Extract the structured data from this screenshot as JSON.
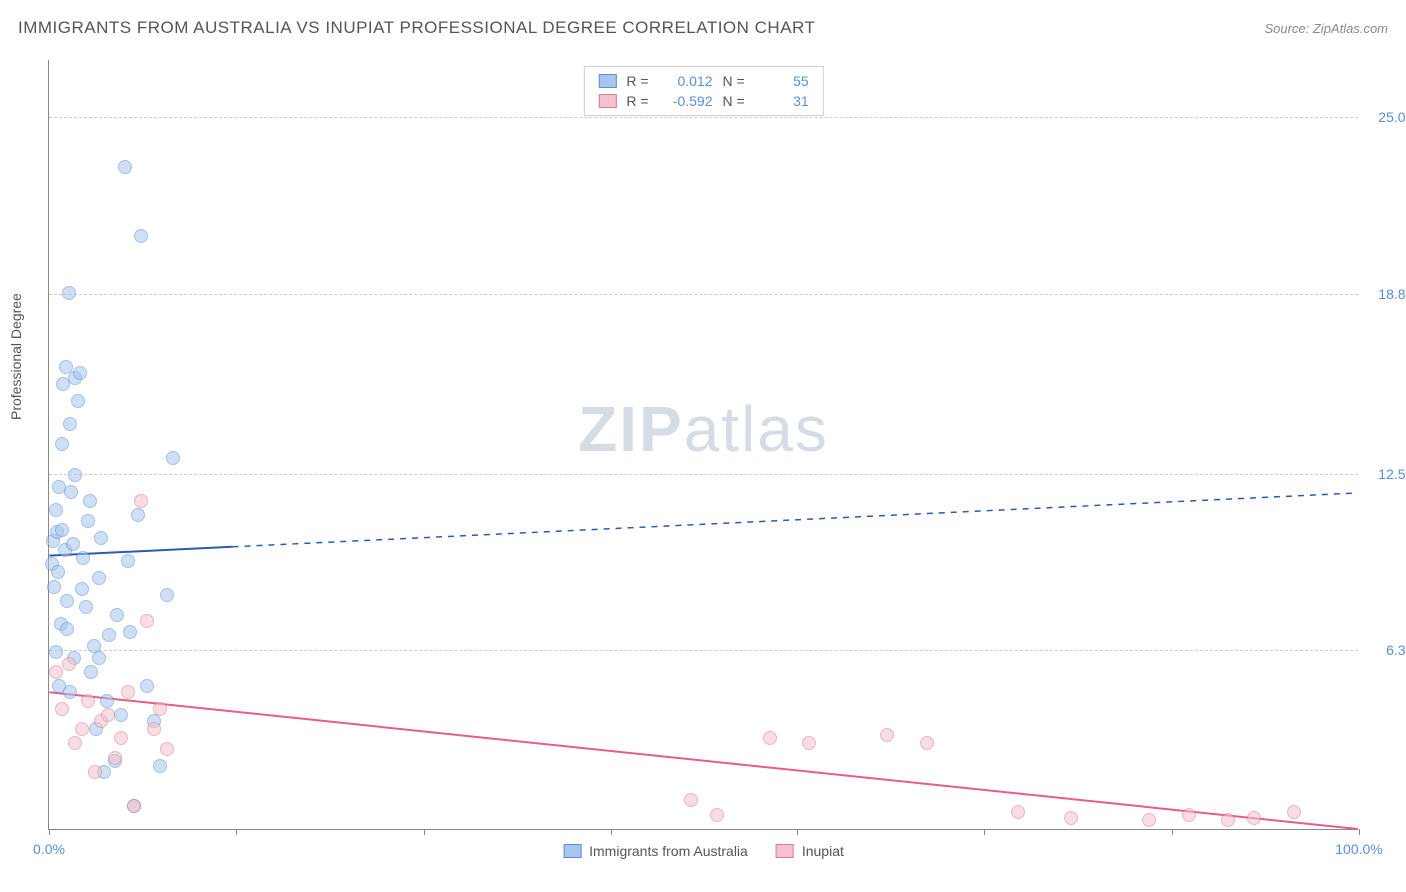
{
  "header": {
    "title": "IMMIGRANTS FROM AUSTRALIA VS INUPIAT PROFESSIONAL DEGREE CORRELATION CHART",
    "source": "Source: ZipAtlas.com"
  },
  "ylabel": "Professional Degree",
  "watermark": {
    "zip": "ZIP",
    "atlas": "atlas"
  },
  "chart": {
    "type": "scatter",
    "background_color": "#ffffff",
    "grid_color": "#cccccc",
    "axis_color": "#888888",
    "xlim": [
      0,
      100
    ],
    "ylim": [
      0,
      27
    ],
    "yticks": [
      {
        "v": 6.3,
        "label": "6.3%"
      },
      {
        "v": 12.5,
        "label": "12.5%"
      },
      {
        "v": 18.8,
        "label": "18.8%"
      },
      {
        "v": 25.0,
        "label": "25.0%"
      }
    ],
    "xticks_minor": [
      0,
      14.3,
      28.6,
      42.9,
      57.1,
      71.4,
      85.7,
      100
    ],
    "xticks_label": [
      {
        "v": 0,
        "label": "0.0%"
      },
      {
        "v": 100,
        "label": "100.0%"
      }
    ],
    "point_radius": 7,
    "point_opacity": 0.55,
    "point_border_width": 1.2,
    "series": [
      {
        "name": "Immigrants from Australia",
        "color_fill": "#a8c6ec",
        "color_stroke": "#5b8fd6",
        "R": "0.012",
        "N": "55",
        "trend": {
          "color": "#2a5bb0",
          "width": 2,
          "solid_to_x": 14,
          "y_at_0": 9.6,
          "y_at_100": 11.8
        },
        "points": [
          [
            0.2,
            9.3
          ],
          [
            0.3,
            10.1
          ],
          [
            0.4,
            8.5
          ],
          [
            0.5,
            11.2
          ],
          [
            0.6,
            10.4
          ],
          [
            0.7,
            9.0
          ],
          [
            0.8,
            12.0
          ],
          [
            0.9,
            7.2
          ],
          [
            1.0,
            10.5
          ],
          [
            1.1,
            15.6
          ],
          [
            1.2,
            9.8
          ],
          [
            1.3,
            16.2
          ],
          [
            1.4,
            8.0
          ],
          [
            1.5,
            18.8
          ],
          [
            1.6,
            14.2
          ],
          [
            1.7,
            11.8
          ],
          [
            1.8,
            10.0
          ],
          [
            1.9,
            6.0
          ],
          [
            2.0,
            15.8
          ],
          [
            2.2,
            15.0
          ],
          [
            2.4,
            16.0
          ],
          [
            2.6,
            9.5
          ],
          [
            2.8,
            7.8
          ],
          [
            3.0,
            10.8
          ],
          [
            3.2,
            5.5
          ],
          [
            3.4,
            6.4
          ],
          [
            3.6,
            3.5
          ],
          [
            3.8,
            8.8
          ],
          [
            4.0,
            10.2
          ],
          [
            4.2,
            2.0
          ],
          [
            4.4,
            4.5
          ],
          [
            4.6,
            6.8
          ],
          [
            5.0,
            2.4
          ],
          [
            5.2,
            7.5
          ],
          [
            5.5,
            4.0
          ],
          [
            5.8,
            23.2
          ],
          [
            6.0,
            9.4
          ],
          [
            6.2,
            6.9
          ],
          [
            6.5,
            0.8
          ],
          [
            6.8,
            11.0
          ],
          [
            7.0,
            20.8
          ],
          [
            7.5,
            5.0
          ],
          [
            8.0,
            3.8
          ],
          [
            8.5,
            2.2
          ],
          [
            9.0,
            8.2
          ],
          [
            9.5,
            13.0
          ],
          [
            0.5,
            6.2
          ],
          [
            1.0,
            13.5
          ],
          [
            1.4,
            7.0
          ],
          [
            2.0,
            12.4
          ],
          [
            2.5,
            8.4
          ],
          [
            3.1,
            11.5
          ],
          [
            0.8,
            5.0
          ],
          [
            1.6,
            4.8
          ],
          [
            3.8,
            6.0
          ]
        ]
      },
      {
        "name": "Inupiat",
        "color_fill": "#f4c2cd",
        "color_stroke": "#e07a93",
        "R": "-0.592",
        "N": "31",
        "trend": {
          "color": "#e65d88",
          "width": 2,
          "solid_to_x": 100,
          "y_at_0": 4.8,
          "y_at_100": 0.0
        },
        "points": [
          [
            0.5,
            5.5
          ],
          [
            1.0,
            4.2
          ],
          [
            1.5,
            5.8
          ],
          [
            2.0,
            3.0
          ],
          [
            2.5,
            3.5
          ],
          [
            3.0,
            4.5
          ],
          [
            3.5,
            2.0
          ],
          [
            4.0,
            3.8
          ],
          [
            4.5,
            4.0
          ],
          [
            5.0,
            2.5
          ],
          [
            5.5,
            3.2
          ],
          [
            6.0,
            4.8
          ],
          [
            6.5,
            0.8
          ],
          [
            7.0,
            11.5
          ],
          [
            7.5,
            7.3
          ],
          [
            8.0,
            3.5
          ],
          [
            8.5,
            4.2
          ],
          [
            9.0,
            2.8
          ],
          [
            49.0,
            1.0
          ],
          [
            51.0,
            0.5
          ],
          [
            55.0,
            3.2
          ],
          [
            58.0,
            3.0
          ],
          [
            64.0,
            3.3
          ],
          [
            67.0,
            3.0
          ],
          [
            74.0,
            0.6
          ],
          [
            78.0,
            0.4
          ],
          [
            84.0,
            0.3
          ],
          [
            87.0,
            0.5
          ],
          [
            90.0,
            0.3
          ],
          [
            92.0,
            0.4
          ],
          [
            95.0,
            0.6
          ]
        ]
      }
    ]
  },
  "legend_bottom": [
    {
      "label": "Immigrants from Australia",
      "fill": "#a8c6ec",
      "stroke": "#5b8fd6"
    },
    {
      "label": "Inupiat",
      "fill": "#f4c2cd",
      "stroke": "#e07a93"
    }
  ]
}
